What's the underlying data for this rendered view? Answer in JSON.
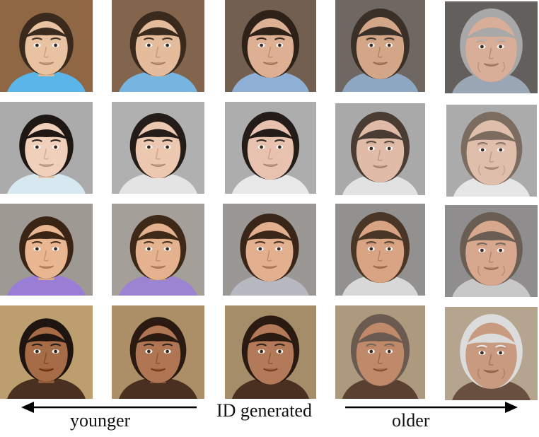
{
  "labels": {
    "younger": "younger",
    "center": "ID generated",
    "older": "older"
  },
  "columns": [
    "young-child",
    "older-child",
    "id-generated",
    "middle-aged",
    "elderly"
  ],
  "rows": [
    {
      "id": "boy-blue-shirt",
      "faces": [
        {
          "skin": "#e9c2a2",
          "hair": "#3a2a1e",
          "bg": "#8a6240",
          "shirt": "#5ab6e8",
          "age": 0
        },
        {
          "skin": "#e4bc9c",
          "hair": "#3a2a1e",
          "bg": "#7e6048",
          "shirt": "#78b4e0",
          "age": 1
        },
        {
          "skin": "#ddb094",
          "hair": "#2e2218",
          "bg": "#6e5a4a",
          "shirt": "#8eb0d4",
          "age": 2
        },
        {
          "skin": "#d4a688",
          "hair": "#3a3028",
          "bg": "#6a625c",
          "shirt": "#8ea8c4",
          "age": 3
        },
        {
          "skin": "#d8ae98",
          "hair": "#a8a8a8",
          "bg": "#5e5a58",
          "shirt": "#9aa6b4",
          "age": 4
        }
      ]
    },
    {
      "id": "girl-dark-hair",
      "faces": [
        {
          "skin": "#f0d0ba",
          "hair": "#1e1714",
          "bg": "#a6a6a6",
          "shirt": "#d8e8f0",
          "age": 0
        },
        {
          "skin": "#ecc8b0",
          "hair": "#241c18",
          "bg": "#ababab",
          "shirt": "#e4e4e4",
          "age": 1
        },
        {
          "skin": "#e8c2ae",
          "hair": "#241c18",
          "bg": "#a8a8a8",
          "shirt": "#e8e8e8",
          "age": 2
        },
        {
          "skin": "#e0bca8",
          "hair": "#4a3c32",
          "bg": "#a4a4a4",
          "shirt": "#e2e2e2",
          "age": 3
        },
        {
          "skin": "#e0beac",
          "hair": "#7c6c60",
          "bg": "#a6a6a6",
          "shirt": "#e6e6e6",
          "age": 4
        }
      ]
    },
    {
      "id": "boy-brown-hair",
      "faces": [
        {
          "skin": "#e8b690",
          "hair": "#3a2416",
          "bg": "#9a948e",
          "shirt": "#9a7ed6",
          "age": 0
        },
        {
          "skin": "#e4b28e",
          "hair": "#3e2818",
          "bg": "#a09a94",
          "shirt": "#9c84d0",
          "age": 1
        },
        {
          "skin": "#e2b08e",
          "hair": "#3a2618",
          "bg": "#969290",
          "shirt": "#b8b8c0",
          "age": 2
        },
        {
          "skin": "#d8a484",
          "hair": "#4a3626",
          "bg": "#8e8c8a",
          "shirt": "#d8d8d8",
          "age": 3
        },
        {
          "skin": "#d8a88e",
          "hair": "#6a5e54",
          "bg": "#8a8888",
          "shirt": "#c8c8c8",
          "age": 4
        }
      ]
    },
    {
      "id": "girl-curly-hair",
      "faces": [
        {
          "skin": "#a66c48",
          "hair": "#1e1410",
          "bg": "#b89a6a",
          "shirt": "#4a3020",
          "age": 0
        },
        {
          "skin": "#b07654",
          "hair": "#2a1a12",
          "bg": "#a88a62",
          "shirt": "#4a3020",
          "age": 1
        },
        {
          "skin": "#b27a58",
          "hair": "#2a1a12",
          "bg": "#a08864",
          "shirt": "#4a3020",
          "age": 2
        },
        {
          "skin": "#c08a6a",
          "hair": "#6a5a50",
          "bg": "#a89478",
          "shirt": "#5a4030",
          "age": 3
        },
        {
          "skin": "#c89a80",
          "hair": "#dcdcdc",
          "bg": "#b0a08a",
          "shirt": "#6a5040",
          "age": 4
        }
      ]
    }
  ]
}
